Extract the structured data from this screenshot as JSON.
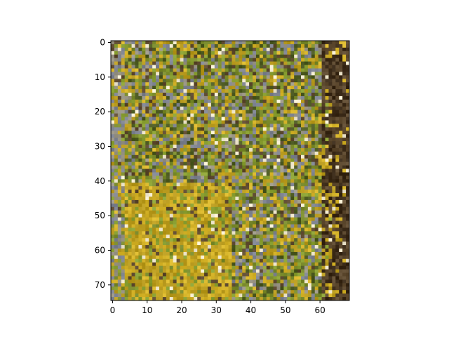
{
  "chart_data": {
    "type": "heatmap",
    "title": "",
    "xlabel": "",
    "ylabel": "",
    "grid": false,
    "legend": "none",
    "image": {
      "columns": 69,
      "rows": 75,
      "content": "pixelated photo of autumn foliage: yellow, olive-green and brown leaves with grey-blue gaps; darker brown trunk area along the right edge"
    },
    "xlim": [
      -0.5,
      68.5
    ],
    "ylim": [
      74.5,
      -0.5
    ],
    "x_ticks": [
      0,
      10,
      20,
      30,
      40,
      50,
      60
    ],
    "y_ticks": [
      0,
      10,
      20,
      30,
      40,
      50,
      60,
      70
    ],
    "palette": {
      "deep_brown": "#3a2a18",
      "brown": "#5e4a30",
      "olive_dark": "#4d5a22",
      "olive": "#7a8a2c",
      "green": "#8aa033",
      "yellow_ochre": "#b89a1e",
      "gold": "#d6b42a",
      "grey_blue": "#7d8290",
      "grey": "#9a9585",
      "highlight": "#f2ead0"
    }
  }
}
